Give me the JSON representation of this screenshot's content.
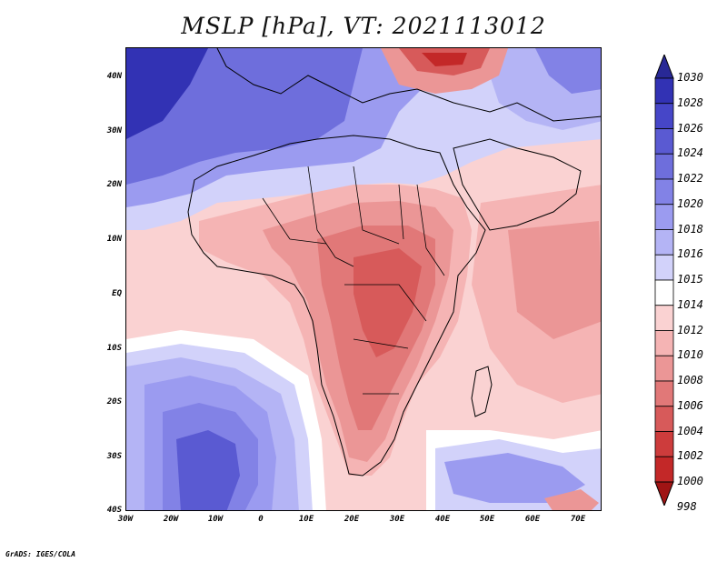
{
  "title": "MSLP [hPa], VT: 2021113012",
  "footer": "GrADS: IGES/COLA",
  "axes": {
    "y_ticks": [
      "40N",
      "30N",
      "20N",
      "10N",
      "EQ",
      "10S",
      "20S",
      "30S",
      "40S"
    ],
    "x_ticks": [
      "30W",
      "20W",
      "10W",
      "0",
      "10E",
      "20E",
      "30E",
      "40E",
      "50E",
      "60E",
      "70E"
    ]
  },
  "colorbar": {
    "levels": [
      "1030",
      "1028",
      "1026",
      "1024",
      "1022",
      "1020",
      "1018",
      "1016",
      "1015",
      "1014",
      "1012",
      "1010",
      "1008",
      "1006",
      "1004",
      "1002",
      "1000",
      "998"
    ],
    "colors": [
      "#282896",
      "#3232b4",
      "#4646c8",
      "#5a5ad2",
      "#6e6edc",
      "#8282e6",
      "#9b9bf0",
      "#b4b4f5",
      "#d2d2fa",
      "#ffffff",
      "#fad2d2",
      "#f5b4b4",
      "#eb9696",
      "#e17878",
      "#d75a5a",
      "#cd3c3c",
      "#c32828",
      "#a01414"
    ]
  },
  "colors": {
    "ocean_south_high": "#b4b4f5",
    "land_low": "#e17878",
    "neutral": "#ffffff"
  }
}
